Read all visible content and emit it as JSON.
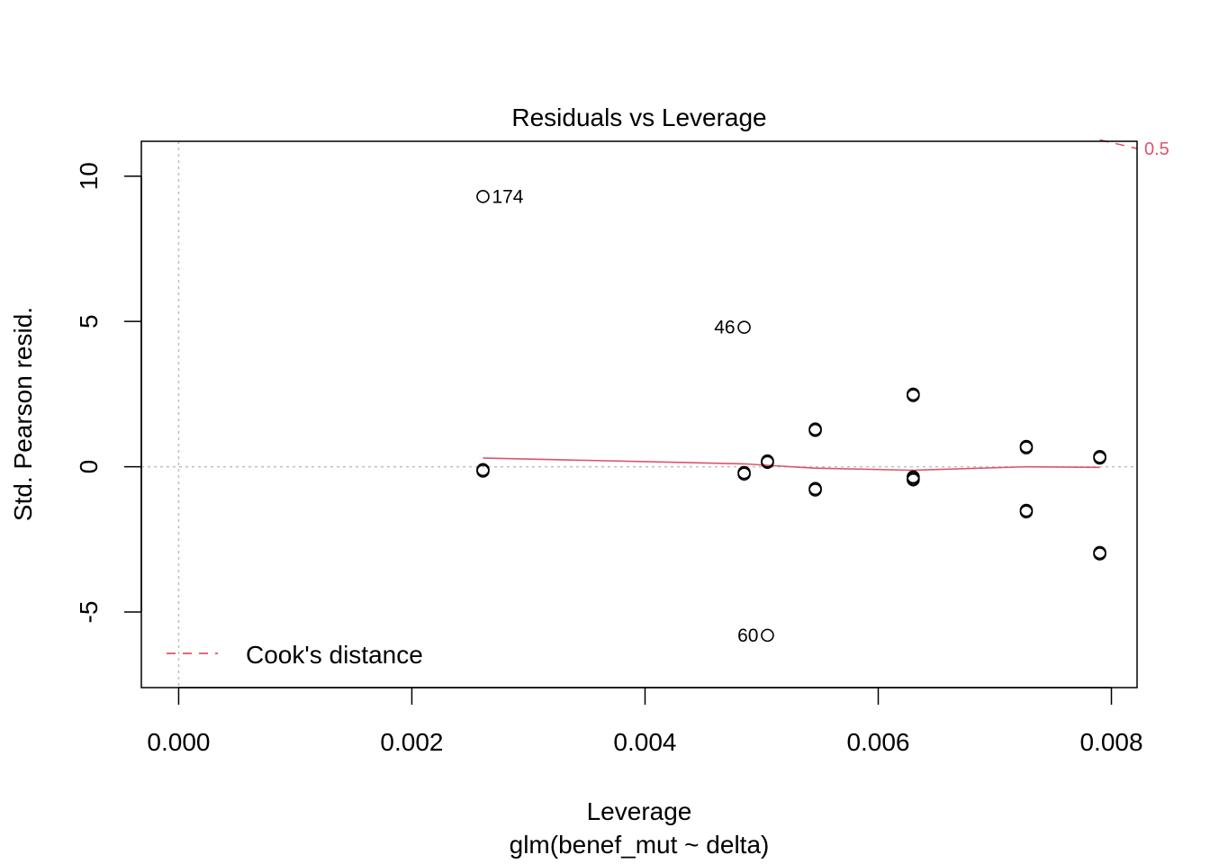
{
  "chart_data": {
    "type": "scatter",
    "title": "Residuals vs Leverage",
    "xlabel": "Leverage",
    "subtitle": "glm(benef_mut ~ delta)",
    "ylabel": "Std. Pearson resid.",
    "xlim": [
      -0.00032,
      0.00822
    ],
    "ylim": [
      -7.6,
      11.2
    ],
    "xticks": [
      {
        "value": 0.0,
        "label": "0.000"
      },
      {
        "value": 0.002,
        "label": "0.002"
      },
      {
        "value": 0.004,
        "label": "0.004"
      },
      {
        "value": 0.006,
        "label": "0.006"
      },
      {
        "value": 0.008,
        "label": "0.008"
      }
    ],
    "yticks": [
      {
        "value": -5,
        "label": "-5"
      },
      {
        "value": 0,
        "label": "0"
      },
      {
        "value": 5,
        "label": "5"
      },
      {
        "value": 10,
        "label": "10"
      }
    ],
    "points": [
      {
        "x": 0.00261,
        "y": 9.3,
        "label": "174",
        "label_side": "right"
      },
      {
        "x": 0.00261,
        "y": -0.1
      },
      {
        "x": 0.00261,
        "y": -0.15
      },
      {
        "x": 0.00485,
        "y": 4.8,
        "label": "46",
        "label_side": "left"
      },
      {
        "x": 0.00485,
        "y": -0.2
      },
      {
        "x": 0.00485,
        "y": -0.25
      },
      {
        "x": 0.00505,
        "y": -5.8,
        "label": "60",
        "label_side": "left"
      },
      {
        "x": 0.00505,
        "y": 0.2
      },
      {
        "x": 0.00505,
        "y": 0.15
      },
      {
        "x": 0.00546,
        "y": 1.3
      },
      {
        "x": 0.00546,
        "y": 1.25
      },
      {
        "x": 0.00546,
        "y": -0.75
      },
      {
        "x": 0.00546,
        "y": -0.8
      },
      {
        "x": 0.0063,
        "y": 2.5
      },
      {
        "x": 0.0063,
        "y": 2.45
      },
      {
        "x": 0.0063,
        "y": -0.35
      },
      {
        "x": 0.0063,
        "y": -0.4
      },
      {
        "x": 0.0063,
        "y": -0.45
      },
      {
        "x": 0.00727,
        "y": 0.7
      },
      {
        "x": 0.00727,
        "y": 0.65
      },
      {
        "x": 0.00727,
        "y": -1.5
      },
      {
        "x": 0.00727,
        "y": -1.55
      },
      {
        "x": 0.0079,
        "y": 0.35
      },
      {
        "x": 0.0079,
        "y": 0.3
      },
      {
        "x": 0.0079,
        "y": -2.95
      },
      {
        "x": 0.0079,
        "y": -3.0
      }
    ],
    "smooth_line": {
      "color": "#DF536B",
      "x": [
        0.00261,
        0.00485,
        0.00505,
        0.00546,
        0.0063,
        0.00727,
        0.0079
      ],
      "y": [
        0.3,
        0.1,
        0.05,
        -0.05,
        -0.12,
        0.0,
        -0.02
      ]
    },
    "cooks_distance": {
      "color": "#DF536B",
      "label": "0.5",
      "x": [
        0.0079,
        0.00822
      ],
      "y": [
        11.25,
        10.95
      ]
    },
    "reference_lines": {
      "h": 0,
      "v": 0,
      "color": "#BEBEBE"
    },
    "legend": {
      "label": "Cook's distance",
      "position": "bottom-left",
      "color": "#DF536B",
      "style": "dashed"
    },
    "grid": false
  }
}
